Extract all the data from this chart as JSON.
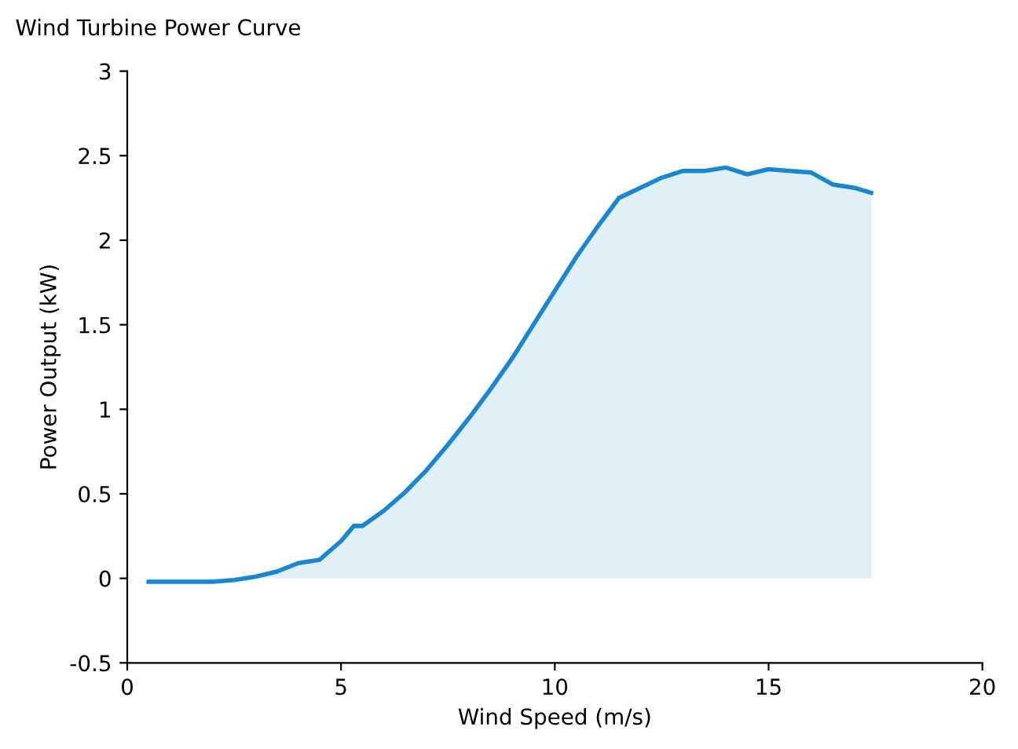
{
  "chart_data": {
    "type": "area",
    "title": "Wind Turbine Power Curve",
    "xlabel": "Wind Speed (m/s)",
    "ylabel": "Power Output (kW)",
    "x": [
      0.5,
      1.0,
      1.5,
      2.0,
      2.5,
      3.0,
      3.5,
      4.0,
      4.5,
      5.0,
      5.3,
      5.5,
      6.0,
      6.5,
      7.0,
      7.5,
      8.0,
      8.5,
      9.0,
      9.5,
      10.0,
      10.5,
      11.0,
      11.5,
      12.0,
      12.5,
      13.0,
      13.5,
      14.0,
      14.5,
      15.0,
      15.5,
      16.0,
      16.5,
      17.0,
      17.4
    ],
    "series": [
      {
        "color": "#1a86cf",
        "values": [
          -0.02,
          -0.02,
          -0.02,
          -0.02,
          -0.01,
          0.01,
          0.04,
          0.09,
          0.11,
          0.22,
          0.31,
          0.31,
          0.4,
          0.51,
          0.64,
          0.79,
          0.95,
          1.12,
          1.3,
          1.5,
          1.7,
          1.9,
          2.08,
          2.25,
          2.31,
          2.37,
          2.41,
          2.41,
          2.43,
          2.39,
          2.42,
          2.41,
          2.4,
          2.33,
          2.31,
          2.28
        ]
      }
    ],
    "xlim": [
      0,
      20
    ],
    "xticks": [
      0,
      5,
      10,
      15,
      20
    ],
    "ylim": [
      -0.5,
      3
    ],
    "yticks": [
      -0.5,
      0,
      0.5,
      1,
      1.5,
      2,
      2.5,
      3
    ],
    "grid": false,
    "legend": false
  }
}
